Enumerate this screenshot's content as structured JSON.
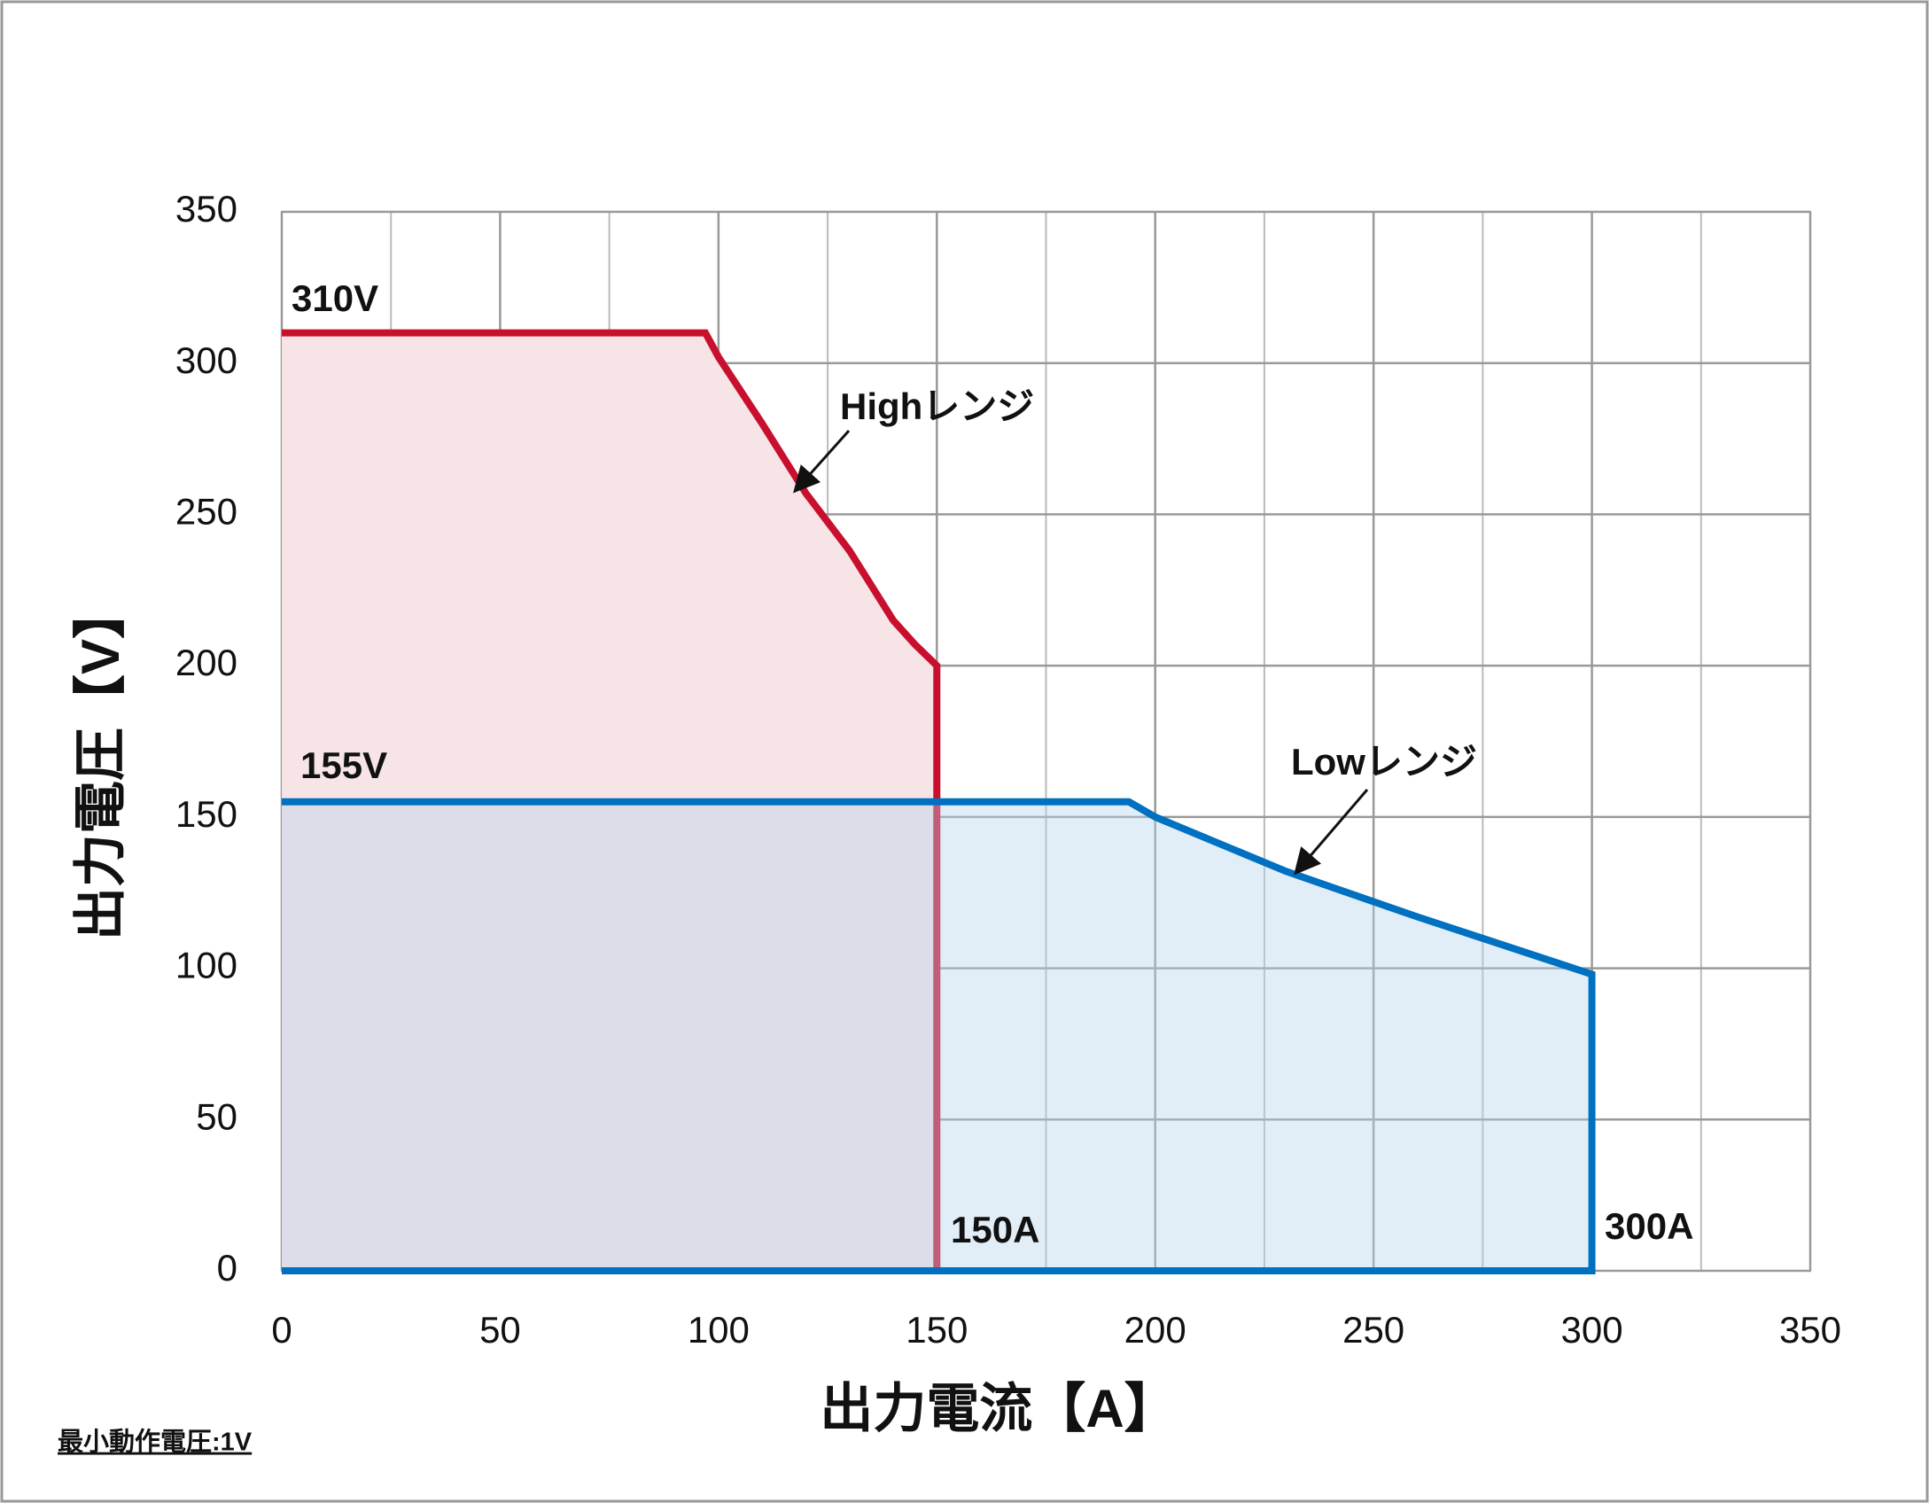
{
  "chart_data": {
    "type": "area",
    "x_label": "出力電流【A】",
    "y_label": "出力電圧【V】",
    "footnote": "最小動作電圧:1V",
    "xlim": [
      0,
      350
    ],
    "ylim": [
      0,
      350
    ],
    "xticks": [
      0,
      50,
      100,
      150,
      200,
      250,
      300,
      350
    ],
    "yticks": [
      0,
      50,
      100,
      150,
      200,
      250,
      300,
      350
    ],
    "x_minor_grid": [
      25,
      75,
      125,
      175,
      225,
      275,
      325
    ],
    "grid": true,
    "series": [
      {
        "name": "Highレンジ",
        "color": "#c8102e",
        "fill": "#f7e4e7",
        "x": [
          0,
          97,
          100,
          110,
          120,
          130,
          140,
          145,
          150,
          150,
          0
        ],
        "values": [
          310,
          310,
          302,
          280,
          257,
          238,
          215,
          207,
          200,
          0,
          0
        ]
      },
      {
        "name": "Lowレンジ",
        "color": "#0070c0",
        "fill": "rgba(180,210,236,0.4)",
        "x": [
          0,
          194,
          200,
          230,
          260,
          300,
          300,
          0
        ],
        "values": [
          155,
          155,
          150,
          132,
          117,
          98,
          0,
          0
        ]
      }
    ],
    "annotations": [
      "310V",
      "155V",
      "150A",
      "300A"
    ]
  }
}
